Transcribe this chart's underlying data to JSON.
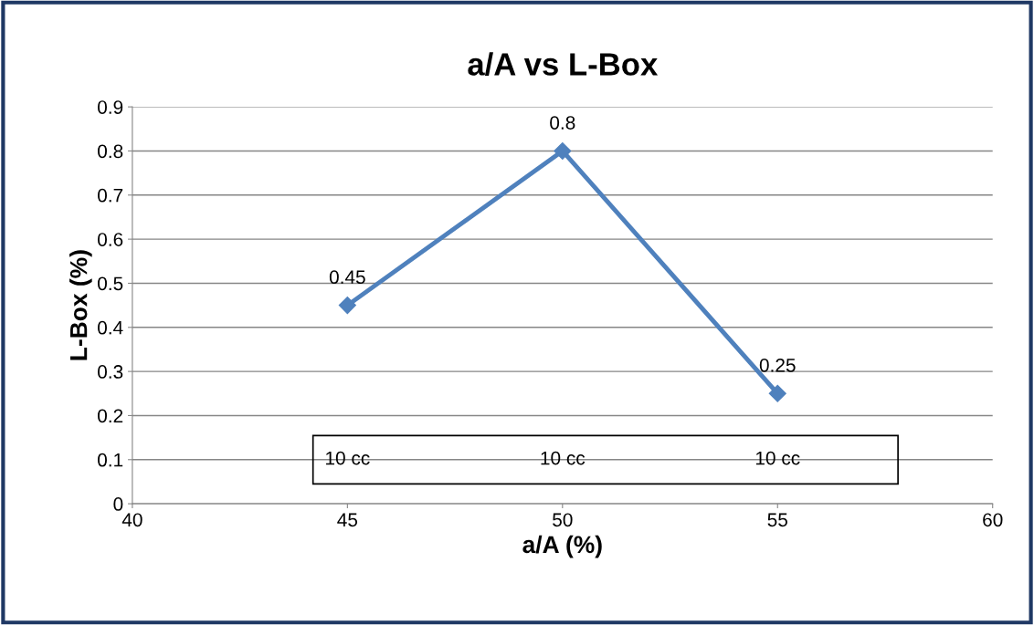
{
  "chart_data": {
    "type": "line",
    "title": "a/A vs L-Box",
    "xlabel": "a/A (%)",
    "ylabel": "L-Box (%)",
    "x": [
      45,
      50,
      55
    ],
    "series": [
      {
        "color": "#4f81bd",
        "values": [
          0.45,
          0.8,
          0.25
        ]
      }
    ],
    "marker": "diamond",
    "line_style": "solid",
    "data_labels": true,
    "xlim": [
      40,
      60
    ],
    "xticks": [
      40,
      45,
      50,
      55,
      60
    ],
    "ylim": [
      0,
      0.9
    ],
    "yticks": [
      0,
      0.1,
      0.2,
      0.3,
      0.4,
      0.5,
      0.6,
      0.7,
      0.8,
      0.9
    ],
    "grid": "y",
    "legend": false,
    "annotations": [
      "10 cc",
      "10 cc",
      "10 cc"
    ]
  }
}
